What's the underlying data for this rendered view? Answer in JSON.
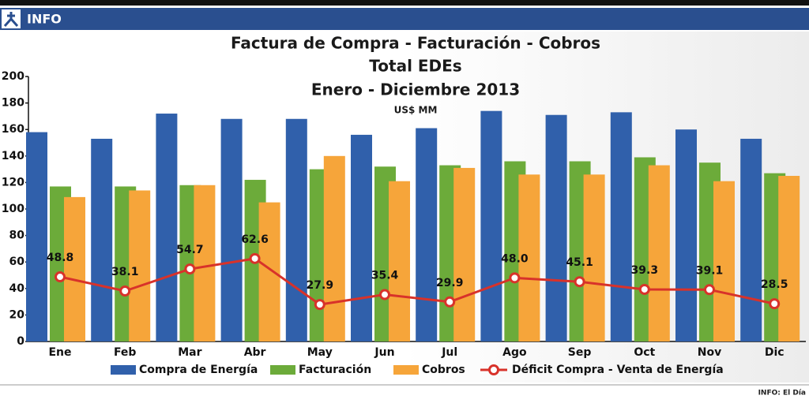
{
  "header": {
    "label": "INFO"
  },
  "chart_data": {
    "type": "bar",
    "title": "Factura de Compra  - Facturación - Cobros",
    "subtitle": "Total EDEs",
    "period": "Enero - Diciembre 2013",
    "unit": "US$ MM",
    "categories": [
      "Ene",
      "Feb",
      "Mar",
      "Abr",
      "May",
      "Jun",
      "Jul",
      "Ago",
      "Sep",
      "Oct",
      "Nov",
      "Dic"
    ],
    "series": [
      {
        "name": "Compra de Energía",
        "color": "#3060ab",
        "values": [
          158,
          153,
          172,
          168,
          168,
          156,
          161,
          174,
          171,
          173,
          160,
          153
        ]
      },
      {
        "name": "Facturación",
        "color": "#6cab3a",
        "values": [
          117,
          117,
          118,
          122,
          130,
          132,
          133,
          136,
          136,
          139,
          135,
          127
        ]
      },
      {
        "name": "Cobros",
        "color": "#f6a53a",
        "values": [
          109,
          114,
          118,
          105,
          140,
          121,
          131,
          126,
          126,
          133,
          121,
          125
        ]
      },
      {
        "name": "Déficit Compra - Venta de Energía",
        "type": "line",
        "color": "#d8322a",
        "values": [
          48.8,
          38.1,
          54.7,
          62.6,
          27.9,
          35.4,
          29.9,
          48.0,
          45.1,
          39.3,
          39.1,
          28.5
        ],
        "value_labels": [
          "48.8",
          "38.1",
          "54.7",
          "62.6",
          "27.9",
          "35.4",
          "29.9",
          "48.0",
          "45.1",
          "39.3",
          "39.1",
          "28.5"
        ]
      }
    ],
    "ylim": [
      0,
      200
    ],
    "yticks": [
      0,
      20,
      40,
      60,
      80,
      100,
      120,
      140,
      160,
      180,
      200
    ],
    "grid": false
  },
  "footer": {
    "credit": "INFO: El Día"
  }
}
